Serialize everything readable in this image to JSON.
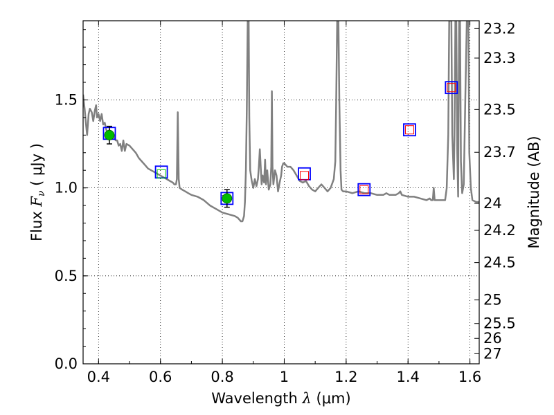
{
  "chart_data": {
    "type": "scatter",
    "xlabel": {
      "prefix": "Wavelength  ",
      "symbol": "λ",
      "unit": " (μm)"
    },
    "ylabel": {
      "prefix": "Flux  ",
      "symbol": "F",
      "sub": "ν",
      "unit": "  ( μJy )"
    },
    "y2label": "Magnitude (AB)",
    "xlim": [
      0.35,
      1.63
    ],
    "ylim": [
      0.0,
      1.95
    ],
    "grid": true,
    "x_ticks": [
      0.4,
      0.6,
      0.8,
      1.0,
      1.2,
      1.4,
      1.6
    ],
    "x_tick_labels": [
      "0.4",
      "0.6",
      "0.8",
      "1",
      "1.2",
      "1.4",
      "1.6"
    ],
    "y_ticks": [
      0.0,
      0.5,
      1.0,
      1.5
    ],
    "y_tick_labels": [
      "0.0",
      "0.5",
      "1.0",
      "1.5"
    ],
    "y2_ticks": [
      {
        "label": "23.2",
        "mag": 23.2
      },
      {
        "label": "23.3",
        "mag": 23.3
      },
      {
        "label": "23.5",
        "mag": 23.5
      },
      {
        "label": "23.7",
        "mag": 23.7
      },
      {
        "label": "24",
        "mag": 24.0
      },
      {
        "label": "24.2",
        "mag": 24.2
      },
      {
        "label": "24.5",
        "mag": 24.5
      },
      {
        "label": "25",
        "mag": 25.0
      },
      {
        "label": "25.5",
        "mag": 25.5
      },
      {
        "label": "26",
        "mag": 26.0
      },
      {
        "label": "27",
        "mag": 27.0
      }
    ],
    "series": [
      {
        "kind": "model-spectrum",
        "color": "#808080",
        "points": [
          [
            0.35,
            1.53
          ],
          [
            0.355,
            1.45
          ],
          [
            0.36,
            1.35
          ],
          [
            0.363,
            1.3
          ],
          [
            0.368,
            1.42
          ],
          [
            0.372,
            1.45
          ],
          [
            0.378,
            1.43
          ],
          [
            0.383,
            1.38
          ],
          [
            0.388,
            1.44
          ],
          [
            0.392,
            1.47
          ],
          [
            0.395,
            1.4
          ],
          [
            0.4,
            1.42
          ],
          [
            0.405,
            1.38
          ],
          [
            0.41,
            1.42
          ],
          [
            0.415,
            1.36
          ],
          [
            0.42,
            1.37
          ],
          [
            0.425,
            1.33
          ],
          [
            0.43,
            1.31
          ],
          [
            0.435,
            1.33
          ],
          [
            0.44,
            1.3
          ],
          [
            0.445,
            1.29
          ],
          [
            0.45,
            1.3
          ],
          [
            0.455,
            1.27
          ],
          [
            0.46,
            1.27
          ],
          [
            0.465,
            1.24
          ],
          [
            0.47,
            1.25
          ],
          [
            0.475,
            1.21
          ],
          [
            0.48,
            1.27
          ],
          [
            0.485,
            1.21
          ],
          [
            0.49,
            1.25
          ],
          [
            0.5,
            1.24
          ],
          [
            0.51,
            1.22
          ],
          [
            0.52,
            1.2
          ],
          [
            0.53,
            1.17
          ],
          [
            0.54,
            1.15
          ],
          [
            0.55,
            1.13
          ],
          [
            0.56,
            1.11
          ],
          [
            0.57,
            1.1
          ],
          [
            0.58,
            1.09
          ],
          [
            0.59,
            1.08
          ],
          [
            0.6,
            1.07
          ],
          [
            0.61,
            1.06
          ],
          [
            0.62,
            1.05
          ],
          [
            0.63,
            1.04
          ],
          [
            0.64,
            1.03
          ],
          [
            0.645,
            1.02
          ],
          [
            0.65,
            1.02
          ],
          [
            0.653,
            1.05
          ],
          [
            0.656,
            1.43
          ],
          [
            0.659,
            1.05
          ],
          [
            0.662,
            1.0
          ],
          [
            0.67,
            0.99
          ],
          [
            0.68,
            0.98
          ],
          [
            0.69,
            0.97
          ],
          [
            0.7,
            0.96
          ],
          [
            0.72,
            0.95
          ],
          [
            0.74,
            0.93
          ],
          [
            0.76,
            0.9
          ],
          [
            0.78,
            0.88
          ],
          [
            0.8,
            0.86
          ],
          [
            0.82,
            0.85
          ],
          [
            0.84,
            0.84
          ],
          [
            0.85,
            0.83
          ],
          [
            0.86,
            0.81
          ],
          [
            0.865,
            0.81
          ],
          [
            0.87,
            0.84
          ],
          [
            0.873,
            0.92
          ],
          [
            0.876,
            1.1
          ],
          [
            0.879,
            1.45
          ],
          [
            0.882,
            1.95
          ],
          [
            0.885,
            1.95
          ],
          [
            0.887,
            1.4
          ],
          [
            0.89,
            1.1
          ],
          [
            0.895,
            1.04
          ],
          [
            0.9,
            1.0
          ],
          [
            0.905,
            1.05
          ],
          [
            0.91,
            1.01
          ],
          [
            0.915,
            1.05
          ],
          [
            0.918,
            1.12
          ],
          [
            0.921,
            1.22
          ],
          [
            0.924,
            1.12
          ],
          [
            0.927,
            1.02
          ],
          [
            0.93,
            1.07
          ],
          [
            0.935,
            1.03
          ],
          [
            0.938,
            1.16
          ],
          [
            0.941,
            1.02
          ],
          [
            0.945,
            1.1
          ],
          [
            0.95,
            0.99
          ],
          [
            0.955,
            1.02
          ],
          [
            0.958,
            1.12
          ],
          [
            0.96,
            1.55
          ],
          [
            0.962,
            1.12
          ],
          [
            0.965,
            1.02
          ],
          [
            0.97,
            1.1
          ],
          [
            0.975,
            1.07
          ],
          [
            0.98,
            0.98
          ],
          [
            0.985,
            1.03
          ],
          [
            0.99,
            1.07
          ],
          [
            0.993,
            1.12
          ],
          [
            0.997,
            1.14
          ],
          [
            1.0,
            1.14
          ],
          [
            1.01,
            1.12
          ],
          [
            1.02,
            1.12
          ],
          [
            1.03,
            1.1
          ],
          [
            1.04,
            1.07
          ],
          [
            1.05,
            1.04
          ],
          [
            1.06,
            1.03
          ],
          [
            1.07,
            1.04
          ],
          [
            1.08,
            1.01
          ],
          [
            1.09,
            0.99
          ],
          [
            1.1,
            0.98
          ],
          [
            1.11,
            1.0
          ],
          [
            1.12,
            1.02
          ],
          [
            1.13,
            1.0
          ],
          [
            1.14,
            0.98
          ],
          [
            1.15,
            1.0
          ],
          [
            1.16,
            1.05
          ],
          [
            1.165,
            1.15
          ],
          [
            1.168,
            1.5
          ],
          [
            1.171,
            1.95
          ],
          [
            1.175,
            1.95
          ],
          [
            1.178,
            1.5
          ],
          [
            1.182,
            1.1
          ],
          [
            1.185,
            0.99
          ],
          [
            1.19,
            0.98
          ],
          [
            1.2,
            0.98
          ],
          [
            1.22,
            0.97
          ],
          [
            1.24,
            0.98
          ],
          [
            1.26,
            0.97
          ],
          [
            1.28,
            0.97
          ],
          [
            1.3,
            0.96
          ],
          [
            1.32,
            0.96
          ],
          [
            1.33,
            0.97
          ],
          [
            1.34,
            0.96
          ],
          [
            1.36,
            0.96
          ],
          [
            1.37,
            0.97
          ],
          [
            1.375,
            0.98
          ],
          [
            1.38,
            0.96
          ],
          [
            1.4,
            0.95
          ],
          [
            1.42,
            0.95
          ],
          [
            1.44,
            0.94
          ],
          [
            1.46,
            0.93
          ],
          [
            1.47,
            0.94
          ],
          [
            1.475,
            0.93
          ],
          [
            1.48,
            0.93
          ],
          [
            1.483,
            1.0
          ],
          [
            1.486,
            0.93
          ],
          [
            1.49,
            0.93
          ],
          [
            1.5,
            0.93
          ],
          [
            1.51,
            0.93
          ],
          [
            1.52,
            0.93
          ],
          [
            1.525,
            1.0
          ],
          [
            1.53,
            1.3
          ],
          [
            1.533,
            1.95
          ],
          [
            1.54,
            1.95
          ],
          [
            1.543,
            1.3
          ],
          [
            1.548,
            1.05
          ],
          [
            1.55,
            1.3
          ],
          [
            1.553,
            1.95
          ],
          [
            1.556,
            1.95
          ],
          [
            1.559,
            1.2
          ],
          [
            1.562,
            0.95
          ],
          [
            1.565,
            1.95
          ],
          [
            1.568,
            1.95
          ],
          [
            1.571,
            1.15
          ],
          [
            1.575,
            0.97
          ],
          [
            1.58,
            1.02
          ],
          [
            1.585,
            1.5
          ],
          [
            1.59,
            1.95
          ],
          [
            1.595,
            1.95
          ],
          [
            1.598,
            1.2
          ],
          [
            1.603,
            1.0
          ],
          [
            1.608,
            0.93
          ],
          [
            1.62,
            0.92
          ],
          [
            1.63,
            0.92
          ]
        ]
      },
      {
        "kind": "photometry-blue-squares",
        "color": "#0000ff",
        "points": [
          [
            0.435,
            1.31
          ],
          [
            0.603,
            1.09
          ],
          [
            0.815,
            0.94
          ],
          [
            1.065,
            1.08
          ],
          [
            1.258,
            0.99
          ],
          [
            1.405,
            1.33
          ],
          [
            1.54,
            1.57
          ]
        ]
      },
      {
        "kind": "model-red-squares",
        "color": "#ff0000",
        "points": [
          [
            1.065,
            1.07
          ],
          [
            1.258,
            0.99
          ],
          [
            1.405,
            1.33
          ],
          [
            1.54,
            1.57
          ]
        ]
      },
      {
        "kind": "model-green-squares",
        "color": "#00cc00",
        "points": [
          [
            0.603,
            1.08
          ]
        ]
      },
      {
        "kind": "measured-green-circles",
        "color": "#00bb00",
        "points": [
          [
            0.435,
            1.3,
            0.05
          ],
          [
            0.815,
            0.94,
            0.05
          ]
        ]
      }
    ]
  }
}
